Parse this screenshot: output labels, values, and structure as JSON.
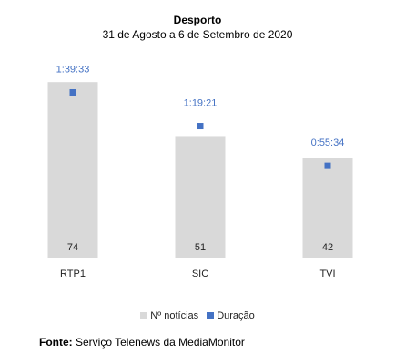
{
  "chart_data": {
    "type": "bar",
    "title": "Desporto",
    "subtitle": "31 de Agosto a 6 de Setembro  de 2020",
    "categories": [
      "RTP1",
      "SIC",
      "TVI"
    ],
    "series": [
      {
        "name": "Nº notícias",
        "type": "bar",
        "values": [
          74,
          51,
          42
        ],
        "color": "#d9d9d9"
      },
      {
        "name": "Duração",
        "type": "scatter",
        "values": [
          "1:39:33",
          "1:19:21",
          "0:55:34"
        ],
        "seconds": [
          5973,
          4761,
          3334
        ],
        "color": "#4472c4"
      }
    ],
    "ylim": [
      0,
      84
    ],
    "y2lim": [
      0,
      7200
    ],
    "legend": "bottom",
    "grid": false
  },
  "source": {
    "label": "Fonte:",
    "text": " Serviço Telenews da MediaMonitor"
  }
}
